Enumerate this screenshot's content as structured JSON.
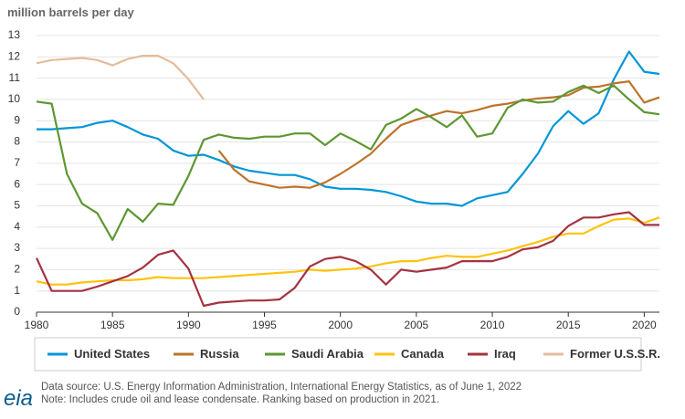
{
  "chart_data": {
    "type": "line",
    "y_label": "million barrels per day",
    "x": [
      1980,
      1981,
      1982,
      1983,
      1984,
      1985,
      1986,
      1987,
      1988,
      1989,
      1990,
      1991,
      1992,
      1993,
      1994,
      1995,
      1996,
      1997,
      1998,
      1999,
      2000,
      2001,
      2002,
      2003,
      2004,
      2005,
      2006,
      2007,
      2008,
      2009,
      2010,
      2011,
      2012,
      2013,
      2014,
      2015,
      2016,
      2017,
      2018,
      2019,
      2020,
      2021
    ],
    "xlim": [
      1980,
      2021
    ],
    "xticks": [
      1980,
      1985,
      1990,
      1995,
      2000,
      2005,
      2010,
      2015,
      2020
    ],
    "ylim": [
      0,
      13
    ],
    "yticks": [
      0,
      1,
      2,
      3,
      4,
      5,
      6,
      7,
      8,
      9,
      10,
      11,
      12,
      13
    ],
    "grid": true,
    "series": [
      {
        "name": "United States",
        "color": "#0096d7",
        "values": [
          8.6,
          8.6,
          8.65,
          8.7,
          8.9,
          9.0,
          8.7,
          8.35,
          8.15,
          7.6,
          7.35,
          7.4,
          7.15,
          6.85,
          6.65,
          6.55,
          6.45,
          6.45,
          6.25,
          5.9,
          5.8,
          5.8,
          5.75,
          5.65,
          5.45,
          5.2,
          5.1,
          5.1,
          5.0,
          5.35,
          5.5,
          5.65,
          6.5,
          7.45,
          8.75,
          9.45,
          8.85,
          9.35,
          10.95,
          12.25,
          11.3,
          11.2
        ]
      },
      {
        "name": "Russia",
        "color": "#bd732a",
        "values": [
          null,
          null,
          null,
          null,
          null,
          null,
          null,
          null,
          null,
          null,
          null,
          null,
          7.6,
          6.7,
          6.15,
          6.0,
          5.85,
          5.9,
          5.85,
          6.1,
          6.5,
          6.95,
          7.45,
          8.15,
          8.8,
          9.05,
          9.25,
          9.45,
          9.35,
          9.5,
          9.7,
          9.8,
          9.95,
          10.05,
          10.1,
          10.2,
          10.55,
          10.6,
          10.75,
          10.85,
          9.85,
          10.1
        ]
      },
      {
        "name": "Saudi Arabia",
        "color": "#5d9732",
        "values": [
          9.9,
          9.8,
          6.5,
          5.1,
          4.65,
          3.4,
          4.85,
          4.25,
          5.1,
          5.05,
          6.4,
          8.1,
          8.35,
          8.2,
          8.15,
          8.25,
          8.25,
          8.4,
          8.4,
          7.85,
          8.4,
          8.05,
          7.65,
          8.8,
          9.1,
          9.55,
          9.15,
          8.7,
          9.25,
          8.25,
          8.4,
          9.6,
          10.0,
          9.85,
          9.9,
          10.35,
          10.65,
          10.3,
          10.65,
          10.0,
          9.4,
          9.3
        ]
      },
      {
        "name": "Canada",
        "color": "#ffc20e",
        "values": [
          1.45,
          1.3,
          1.3,
          1.4,
          1.45,
          1.5,
          1.5,
          1.55,
          1.65,
          1.6,
          1.6,
          1.6,
          1.65,
          1.7,
          1.75,
          1.8,
          1.85,
          1.9,
          2.0,
          1.95,
          2.0,
          2.05,
          2.15,
          2.3,
          2.4,
          2.4,
          2.55,
          2.65,
          2.6,
          2.6,
          2.75,
          2.9,
          3.1,
          3.3,
          3.55,
          3.7,
          3.7,
          4.05,
          4.35,
          4.4,
          4.2,
          4.45
        ]
      },
      {
        "name": "Iraq",
        "color": "#a33340",
        "values": [
          2.55,
          1.0,
          1.0,
          1.0,
          1.2,
          1.45,
          1.7,
          2.1,
          2.7,
          2.9,
          2.05,
          0.3,
          0.45,
          0.5,
          0.55,
          0.55,
          0.6,
          1.15,
          2.15,
          2.5,
          2.6,
          2.4,
          2.0,
          1.3,
          2.0,
          1.9,
          2.0,
          2.1,
          2.4,
          2.4,
          2.4,
          2.6,
          2.95,
          3.05,
          3.35,
          4.05,
          4.45,
          4.45,
          4.6,
          4.7,
          4.1,
          4.1
        ]
      },
      {
        "name": "Former U.S.S.R.",
        "color": "#e3bc9a",
        "values": [
          11.7,
          11.85,
          11.9,
          11.95,
          11.85,
          11.6,
          11.9,
          12.05,
          12.05,
          11.7,
          10.95,
          10.0,
          null,
          null,
          null,
          null,
          null,
          null,
          null,
          null,
          null,
          null,
          null,
          null,
          null,
          null,
          null,
          null,
          null,
          null,
          null,
          null,
          null,
          null,
          null,
          null,
          null,
          null,
          null,
          null,
          null,
          null
        ]
      }
    ],
    "logo": "eia",
    "source": "Data source: U.S. Energy Information Administration, International Energy Statistics, as of June 1, 2022",
    "note": "Note: Includes crude oil and lease condensate. Ranking based on production in 2021."
  }
}
